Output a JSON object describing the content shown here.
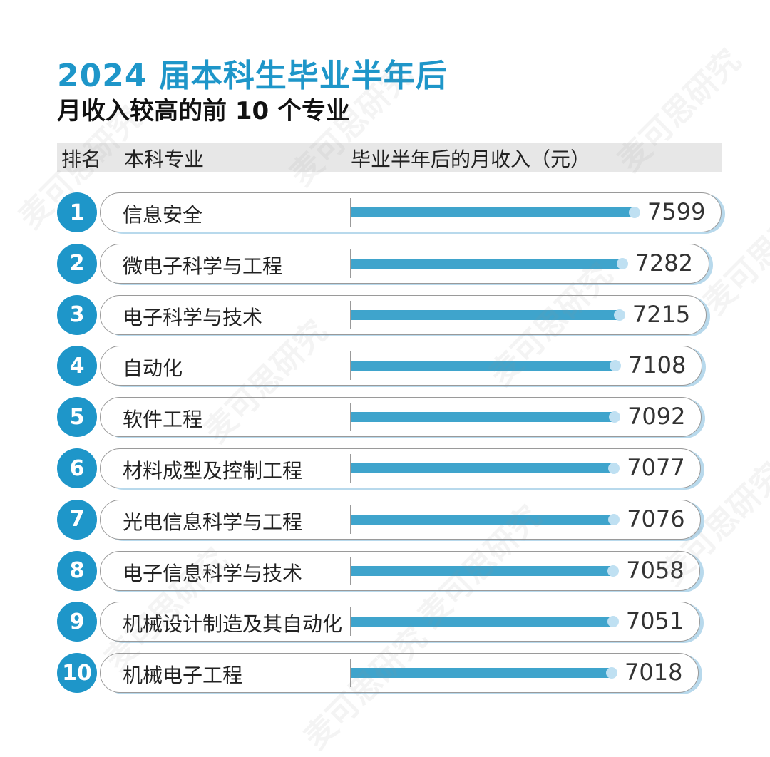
{
  "title_line1": "2024 届本科生毕业半年后",
  "title_line2": "月收入较高的前 10 个专业",
  "header": {
    "rank": "排名",
    "major": "本科专业",
    "income": "毕业半年后的月收入（元）"
  },
  "watermark": "麦可思研究",
  "colors": {
    "accent": "#1e96c9",
    "bar": "#3fa4cc",
    "bar_end": "#bfe0f2",
    "header_bg": "#e7e7e7"
  },
  "chart_data": {
    "type": "bar",
    "title": "2024 届本科生毕业半年后 月收入较高的前 10 个专业",
    "xlabel": "本科专业",
    "ylabel": "毕业半年后的月收入（元）",
    "ranks": [
      "1",
      "2",
      "3",
      "4",
      "5",
      "6",
      "7",
      "8",
      "9",
      "10"
    ],
    "categories": [
      "信息安全",
      "微电子科学与工程",
      "电子科学与技术",
      "自动化",
      "软件工程",
      "材料成型及控制工程",
      "光电信息科学与工程",
      "电子信息科学与技术",
      "机械设计制造及其自动化",
      "机械电子工程"
    ],
    "values": [
      7599,
      7282,
      7215,
      7108,
      7092,
      7077,
      7076,
      7058,
      7051,
      7018
    ]
  }
}
